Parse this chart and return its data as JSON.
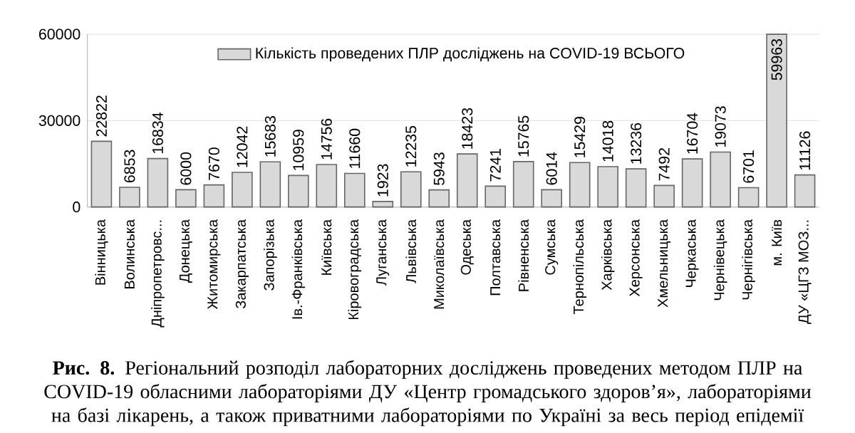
{
  "chart_data": {
    "type": "bar",
    "categories": [
      "Вінницька",
      "Волинська",
      "Дніпропетровс...",
      "Донецька",
      "Житомирська",
      "Закарпатська",
      "Запорізька",
      "Ів.-Франківська",
      "Київська",
      "Кіровоградська",
      "Луганська",
      "Львівська",
      "Миколаївська",
      "Одеська",
      "Полтавська",
      "Рівненська",
      "Сумська",
      "Тернопільська",
      "Харківська",
      "Херсонська",
      "Хмельницька",
      "Черкаська",
      "Чернівецька",
      "Чернігівська",
      "м. Київ",
      "ДУ «ЦГЗ МОЗ..."
    ],
    "series": [
      {
        "name": "Кількість проведених ПЛР досліджень на COVID-19 ВСЬОГО",
        "color": "#d9d9d9",
        "values": [
          22822,
          6853,
          16834,
          6000,
          7670,
          12042,
          15683,
          10959,
          14756,
          11660,
          1923,
          12235,
          5943,
          18423,
          7241,
          15765,
          6014,
          15429,
          14018,
          13236,
          7492,
          16704,
          19073,
          6701,
          59963,
          11126
        ]
      }
    ],
    "ylim": [
      0,
      60000
    ],
    "yticks": [
      0,
      30000,
      60000
    ],
    "grid": "y",
    "legend": "top",
    "data_labels": true,
    "annotations": [
      "**Рис. 8.** Регіональний розподіл лабораторних досліджень проведених методом ПЛР на COVID-19 обласними лабораторіями ДУ «Центр громадського здоров’я», лабораторіями на базі лікарень, а також приватними лабораторіями по Україні за весь період епідемії"
    ]
  }
}
